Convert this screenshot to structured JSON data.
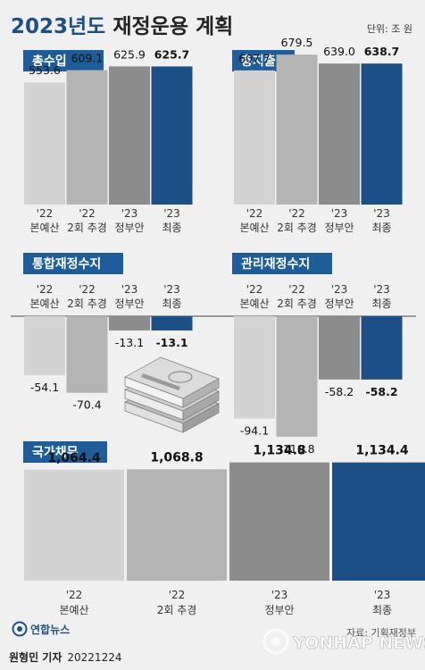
{
  "header": {
    "title_year": "2023년도",
    "title_rest": " 재정운용 계획",
    "unit": "단위: 조 원"
  },
  "colors": {
    "title_blue": "#1c4f86",
    "section_blue": "#1f5d9a",
    "bar1": "#d3d3d3",
    "bar2": "#b4b4b4",
    "bar3": "#8c8c8c",
    "bar4": "#1c4f86",
    "background": "#f0f0f0"
  },
  "chart_data": [
    {
      "type": "bar",
      "title": "총수입",
      "categories": [
        [
          "'22",
          "본예산"
        ],
        [
          "'22",
          "2회 추경"
        ],
        [
          "'23",
          "정부안"
        ],
        [
          "'23",
          "최종"
        ]
      ],
      "values": [
        553.6,
        609.1,
        625.9,
        625.7
      ],
      "labels": [
        "553.6",
        "609.1",
        "625.9",
        "625.7"
      ],
      "ylim": [
        0,
        700
      ]
    },
    {
      "type": "bar",
      "title": "총지출",
      "categories": [
        [
          "'22",
          "본예산"
        ],
        [
          "'22",
          "2회 추경"
        ],
        [
          "'23",
          "정부안"
        ],
        [
          "'23",
          "최종"
        ]
      ],
      "values": [
        607.7,
        679.5,
        639.0,
        638.7
      ],
      "labels": [
        "607.7",
        "679.5",
        "639.0",
        "638.7"
      ],
      "ylim": [
        0,
        700
      ]
    },
    {
      "type": "bar",
      "title": "통합재정수지",
      "categories": [
        [
          "'22",
          "본예산"
        ],
        [
          "'22",
          "2회 추경"
        ],
        [
          "'23",
          "정부안"
        ],
        [
          "'23",
          "최종"
        ]
      ],
      "values": [
        -54.1,
        -70.4,
        -13.1,
        -13.1
      ],
      "labels": [
        "-54.1",
        "-70.4",
        "-13.1",
        "-13.1"
      ],
      "ylim": [
        -115,
        0
      ]
    },
    {
      "type": "bar",
      "title": "관리재정수지",
      "categories": [
        [
          "'22",
          "본예산"
        ],
        [
          "'22",
          "2회 추경"
        ],
        [
          "'23",
          "정부안"
        ],
        [
          "'23",
          "최종"
        ]
      ],
      "values": [
        -94.1,
        -110.8,
        -58.2,
        -58.2
      ],
      "labels": [
        "-94.1",
        "-110.8",
        "-58.2",
        "-58.2"
      ],
      "ylim": [
        -115,
        0
      ]
    },
    {
      "type": "bar",
      "title": "국가채무",
      "categories": [
        [
          "'22",
          "본예산"
        ],
        [
          "'22",
          "2회 추경"
        ],
        [
          "'23",
          "정부안"
        ],
        [
          "'23",
          "최종"
        ]
      ],
      "values": [
        1064.4,
        1068.8,
        1134.8,
        1134.4
      ],
      "labels": [
        "1,064.4",
        "1,068.8",
        "1,134.8",
        "1,134.4"
      ],
      "ylim": [
        0,
        1200
      ]
    }
  ],
  "footer": {
    "source": "자료: 기획재정부",
    "logo_text": "연합뉴스",
    "watermark": "YONHAP NEWS",
    "credit": "원형민 기자",
    "date": "20221224"
  }
}
